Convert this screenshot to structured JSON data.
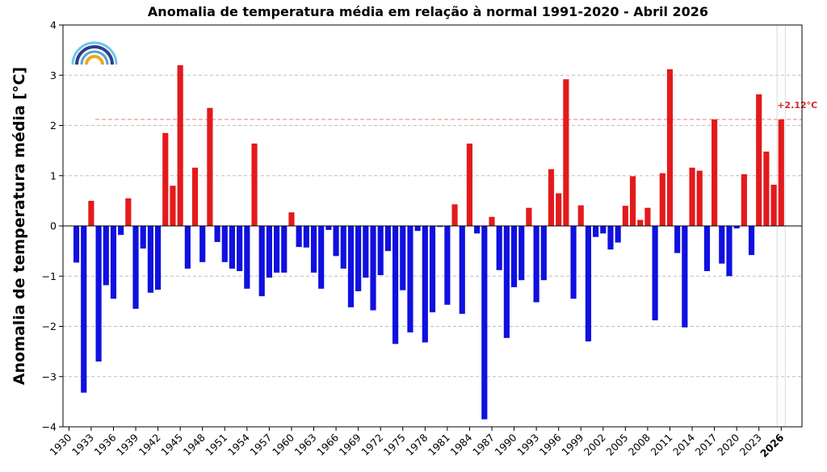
{
  "chart_data": {
    "type": "bar",
    "title": "Anomalia de temperatura média em relação à normal 1991-2020 - Abril 2026",
    "ylabel": "Anomalia de temperatura média [°C]",
    "xlabel": "",
    "ylim": [
      -4,
      4
    ],
    "yticks": [
      -4,
      -3,
      -2,
      -1,
      0,
      1,
      2,
      3,
      4
    ],
    "ytick_labels": [
      "−4",
      "−3",
      "−2",
      "−1",
      "0",
      "1",
      "2",
      "3",
      "4"
    ],
    "grid": "horizontal dashed",
    "xticks": [
      1930,
      1933,
      1936,
      1939,
      1942,
      1945,
      1948,
      1951,
      1954,
      1957,
      1960,
      1963,
      1966,
      1969,
      1972,
      1975,
      1978,
      1981,
      1984,
      1987,
      1990,
      1993,
      1996,
      1999,
      2002,
      2005,
      2008,
      2011,
      2014,
      2017,
      2020,
      2023,
      2026
    ],
    "highlight_year": 2026,
    "reference_line": {
      "value": 2.12,
      "label": "+2.12°C"
    },
    "colors": {
      "positive": "#e31a1c",
      "negative": "#1010e0",
      "reference": "#e8837a"
    },
    "years": [
      1931,
      1932,
      1933,
      1934,
      1935,
      1936,
      1937,
      1938,
      1939,
      1940,
      1941,
      1942,
      1943,
      1944,
      1945,
      1946,
      1947,
      1948,
      1949,
      1950,
      1951,
      1952,
      1953,
      1954,
      1955,
      1956,
      1957,
      1958,
      1959,
      1960,
      1961,
      1962,
      1963,
      1964,
      1965,
      1966,
      1967,
      1968,
      1969,
      1970,
      1971,
      1972,
      1973,
      1974,
      1975,
      1976,
      1977,
      1978,
      1979,
      1980,
      1981,
      1982,
      1983,
      1984,
      1985,
      1986,
      1987,
      1988,
      1989,
      1990,
      1991,
      1992,
      1993,
      1994,
      1995,
      1996,
      1997,
      1998,
      1999,
      2000,
      2001,
      2002,
      2003,
      2004,
      2005,
      2006,
      2007,
      2008,
      2009,
      2010,
      2011,
      2012,
      2013,
      2014,
      2015,
      2016,
      2017,
      2018,
      2019,
      2020,
      2021,
      2022,
      2023,
      2024,
      2025,
      2026
    ],
    "values": [
      -0.73,
      -3.32,
      0.5,
      -2.7,
      -1.18,
      -1.45,
      -0.18,
      0.55,
      -1.65,
      -0.45,
      -1.33,
      -1.27,
      1.85,
      0.8,
      3.2,
      -0.85,
      1.16,
      -0.72,
      2.35,
      -0.32,
      -0.72,
      -0.85,
      -0.9,
      -1.25,
      1.64,
      -1.4,
      -1.03,
      -0.93,
      -0.93,
      0.27,
      -0.42,
      -0.43,
      -0.93,
      -1.25,
      -0.08,
      -0.6,
      -0.85,
      -1.62,
      -1.3,
      -1.03,
      -1.68,
      -0.98,
      -0.5,
      -2.35,
      -1.28,
      -2.12,
      -0.1,
      -2.32,
      -1.72,
      -0.02,
      -1.57,
      0.43,
      -1.75,
      1.64,
      -0.15,
      -3.85,
      0.18,
      -0.88,
      -2.23,
      -1.22,
      -1.08,
      0.36,
      -1.52,
      -1.08,
      1.13,
      0.65,
      2.92,
      -1.45,
      0.41,
      -2.3,
      -0.22,
      -0.15,
      -0.47,
      -0.33,
      0.4,
      0.99,
      0.12,
      0.36,
      -1.88,
      1.05,
      3.12,
      -0.54,
      -2.02,
      1.16,
      1.1,
      -0.9,
      2.12,
      -0.75,
      -1.0,
      -0.05,
      1.03,
      -0.58,
      2.62,
      1.48,
      0.82,
      2.12
    ]
  }
}
